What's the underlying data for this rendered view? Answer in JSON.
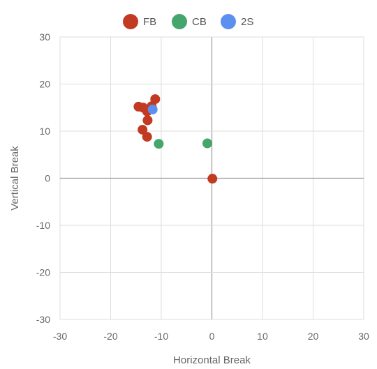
{
  "chart_data": {
    "type": "scatter",
    "title": "",
    "xlabel": "Horizontal Break",
    "ylabel": "Vertical Break",
    "xlim": [
      -30,
      30
    ],
    "ylim": [
      -30,
      30
    ],
    "xticks": [
      -30,
      -20,
      -10,
      0,
      10,
      20,
      30
    ],
    "yticks": [
      -30,
      -20,
      -10,
      0,
      10,
      20,
      30
    ],
    "grid": true,
    "legend_position": "top-center",
    "series": [
      {
        "name": "FB",
        "color": "#c23a22",
        "points": [
          {
            "x": -14.5,
            "y": 15.2
          },
          {
            "x": -13.6,
            "y": 15.0
          },
          {
            "x": -12.8,
            "y": 14.2
          },
          {
            "x": -11.9,
            "y": 15.3
          },
          {
            "x": -11.2,
            "y": 16.8
          },
          {
            "x": -12.7,
            "y": 12.3
          },
          {
            "x": -13.7,
            "y": 10.3
          },
          {
            "x": -12.8,
            "y": 8.8
          },
          {
            "x": 0.1,
            "y": -0.1
          }
        ]
      },
      {
        "name": "CB",
        "color": "#45a56c",
        "points": [
          {
            "x": -10.5,
            "y": 7.3
          },
          {
            "x": -0.9,
            "y": 7.4
          }
        ]
      },
      {
        "name": "2S",
        "color": "#5b8ff0",
        "points": [
          {
            "x": -11.7,
            "y": 14.6
          }
        ]
      }
    ]
  }
}
